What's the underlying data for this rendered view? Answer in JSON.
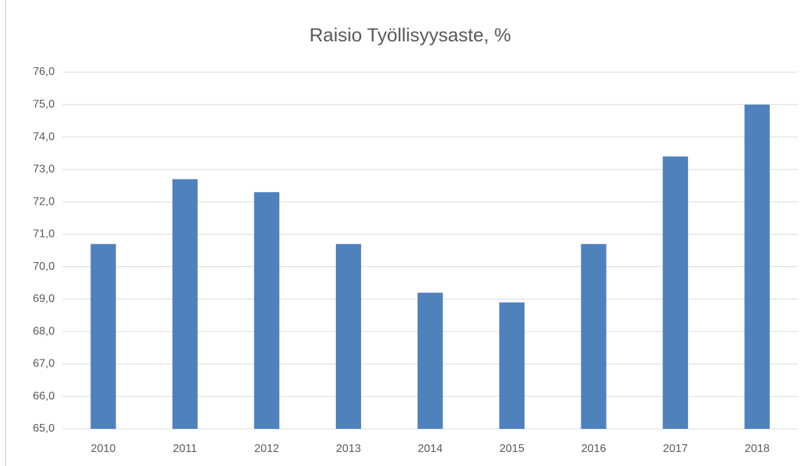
{
  "chart_data": {
    "type": "bar",
    "title": "Raisio Työllisyysaste, %",
    "categories": [
      "2010",
      "2011",
      "2012",
      "2013",
      "2014",
      "2015",
      "2016",
      "2017",
      "2018"
    ],
    "values": [
      70.7,
      72.7,
      72.3,
      70.7,
      69.2,
      68.9,
      70.7,
      73.4,
      75.0
    ],
    "color": "#4f81bd",
    "ylim": [
      65,
      76
    ],
    "yticks": [
      {
        "value": 65,
        "label": "65,0"
      },
      {
        "value": 66,
        "label": "66,0"
      },
      {
        "value": 67,
        "label": "67,0"
      },
      {
        "value": 68,
        "label": "68,0"
      },
      {
        "value": 69,
        "label": "69,0"
      },
      {
        "value": 70,
        "label": "70,0"
      },
      {
        "value": 71,
        "label": "71,0"
      },
      {
        "value": 72,
        "label": "72,0"
      },
      {
        "value": 73,
        "label": "73,0"
      },
      {
        "value": 74,
        "label": "74,0"
      },
      {
        "value": 75,
        "label": "75,0"
      },
      {
        "value": 76,
        "label": "76,0"
      }
    ],
    "grid": true
  }
}
